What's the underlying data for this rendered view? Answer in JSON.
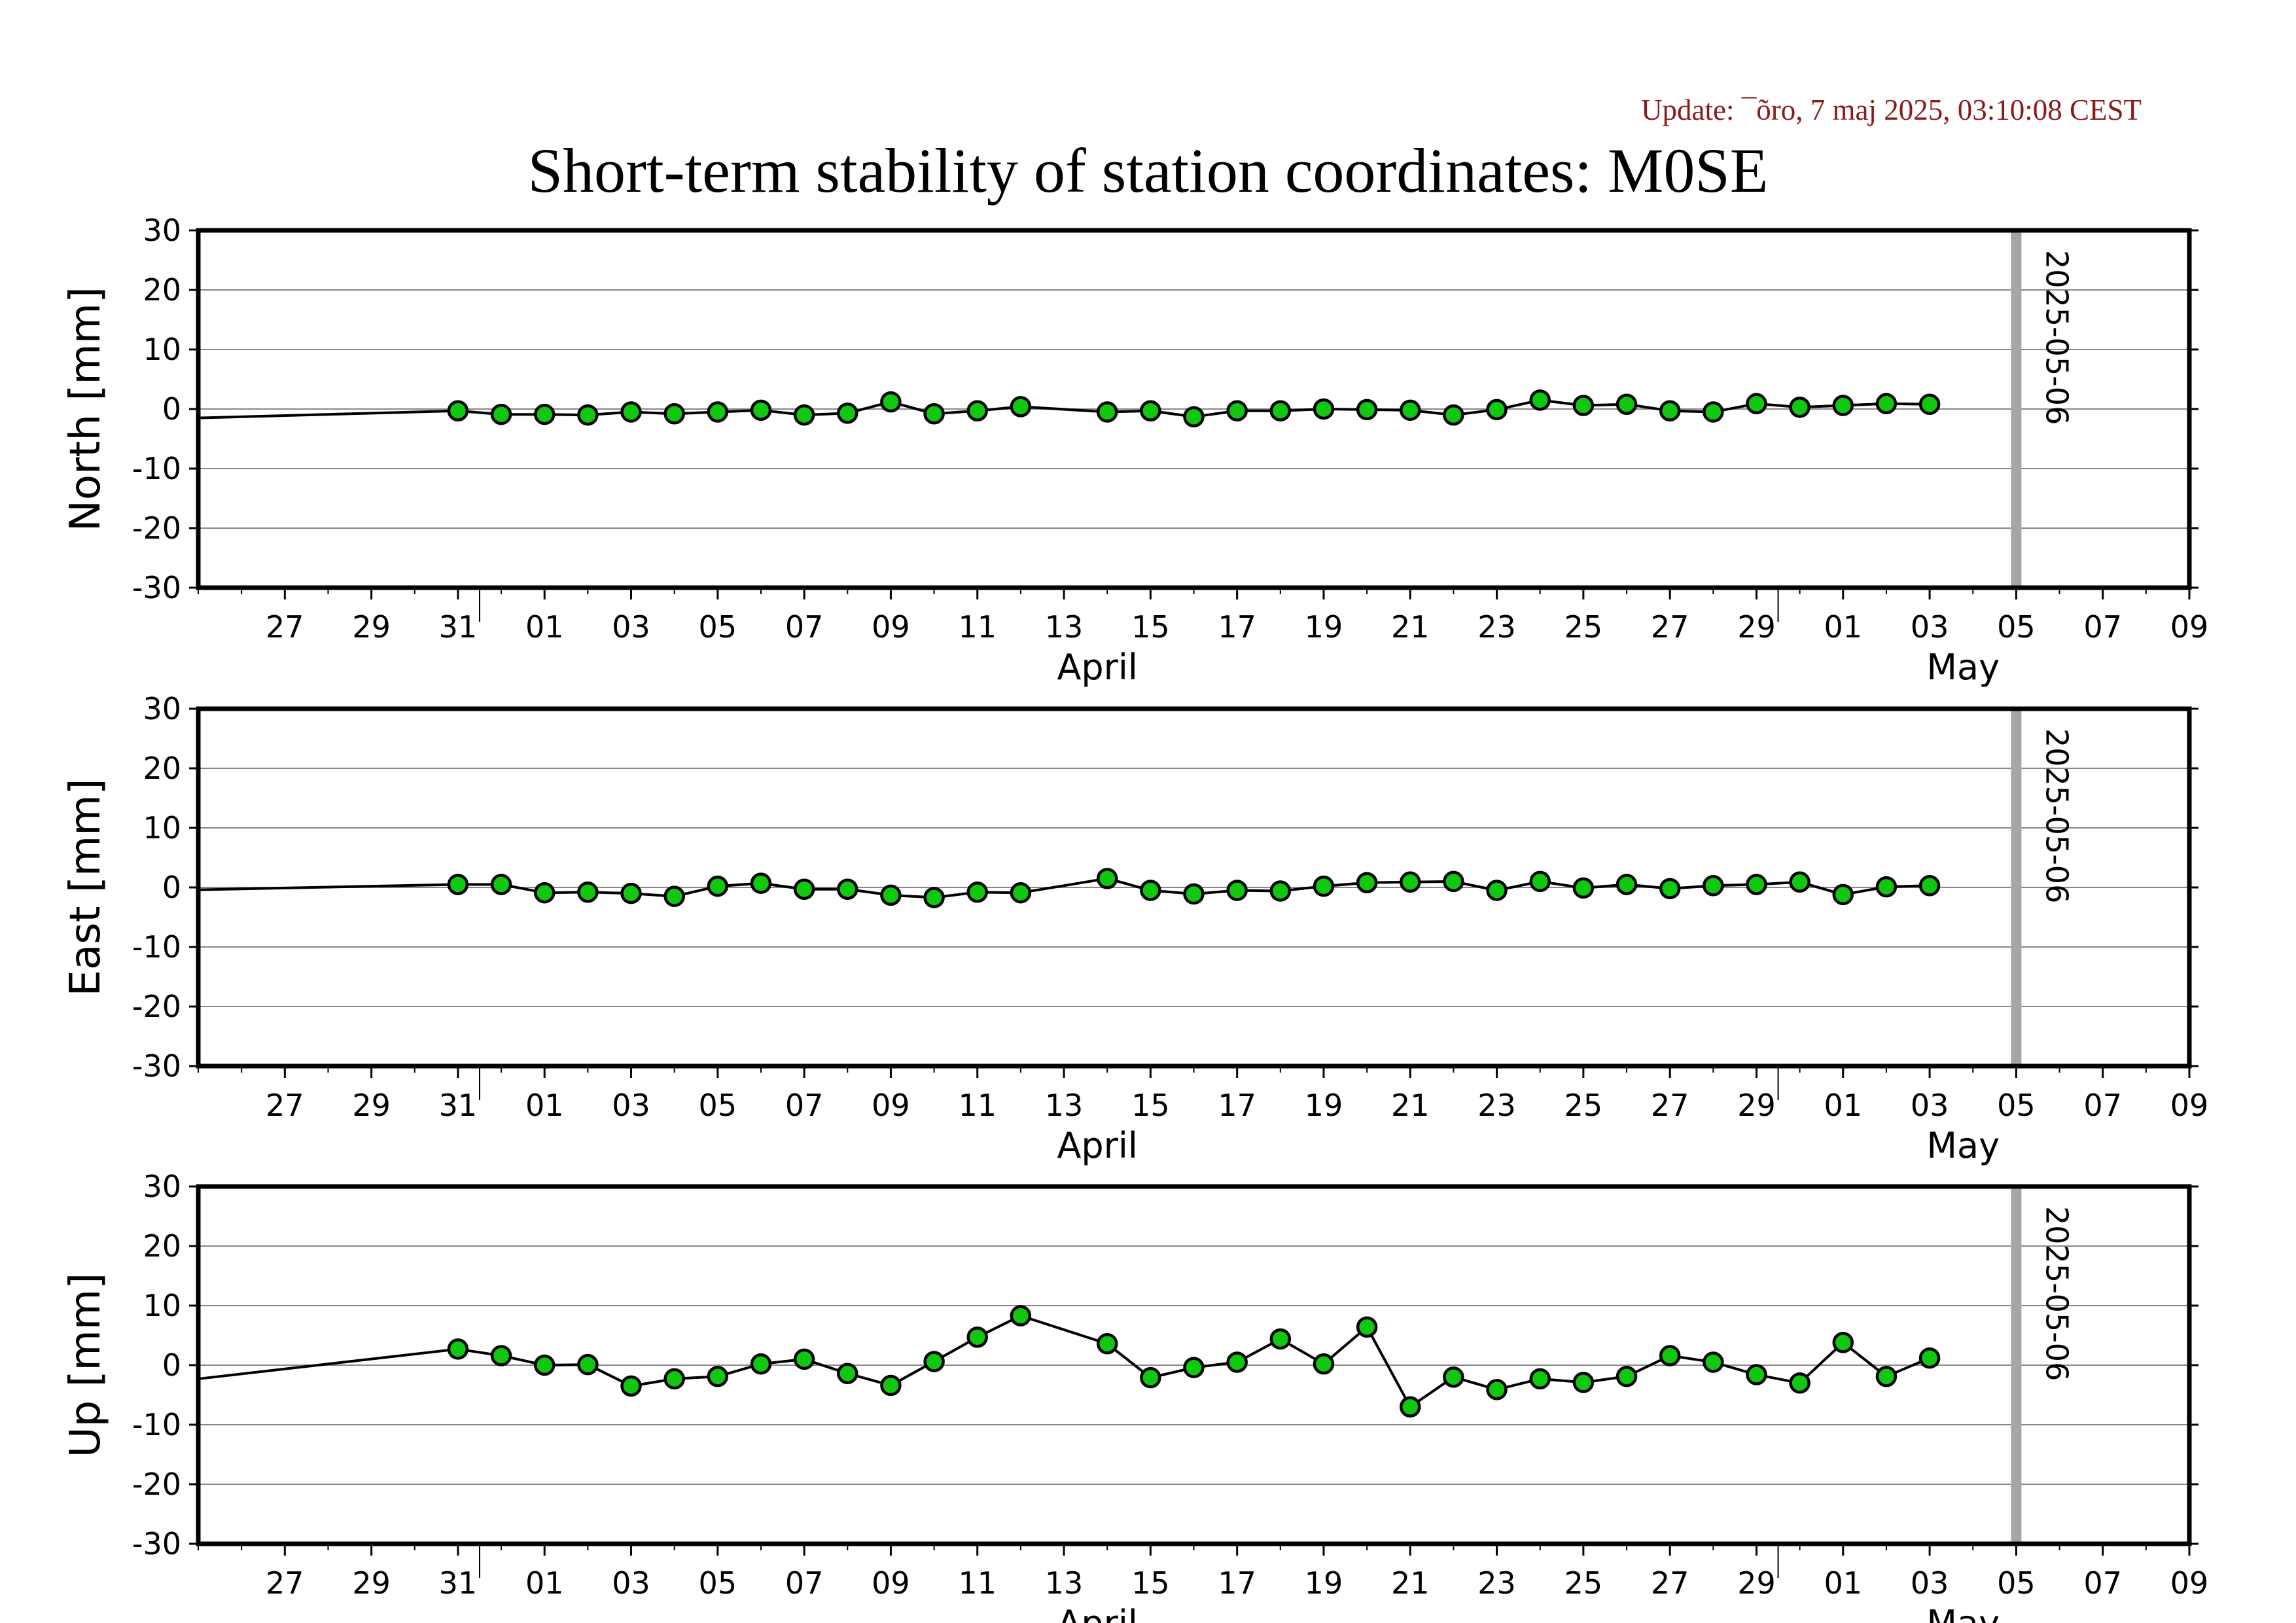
{
  "page": {
    "update_text": "Update: ¯õro, 7 maj 2025, 03:10:08 CEST",
    "title": "Short-term stability of station coordinates: M0SE"
  },
  "colors": {
    "marker_fill": "#11c811",
    "line": "#000000",
    "grid": "#888888",
    "current_date_line": "#a6a6a6",
    "update_text": "#8b1a1a"
  },
  "chart_data": [
    {
      "type": "line",
      "ylabel": "North [mm]",
      "ylim": [
        -30,
        30
      ],
      "yticks": [
        30,
        20,
        10,
        0,
        -10,
        -20,
        -30
      ],
      "grid": true,
      "xlim": [
        "2025-03-25",
        "2025-05-10"
      ],
      "month_labels": [
        "April",
        "May"
      ],
      "vline_label": "2025-05-06",
      "leading_segment": {
        "x": "2025-03-25",
        "y": -1.5
      },
      "x": [
        "2025-03-31",
        "2025-04-01",
        "2025-04-02",
        "2025-04-03",
        "2025-04-04",
        "2025-04-05",
        "2025-04-06",
        "2025-04-07",
        "2025-04-08",
        "2025-04-09",
        "2025-04-10",
        "2025-04-11",
        "2025-04-12",
        "2025-04-13",
        "2025-04-15",
        "2025-04-16",
        "2025-04-17",
        "2025-04-18",
        "2025-04-19",
        "2025-04-20",
        "2025-04-21",
        "2025-04-22",
        "2025-04-23",
        "2025-04-24",
        "2025-04-25",
        "2025-04-26",
        "2025-04-27",
        "2025-04-28",
        "2025-04-29",
        "2025-04-30",
        "2025-05-01",
        "2025-05-02",
        "2025-05-03",
        "2025-05-04"
      ],
      "values": [
        -0.3,
        -0.9,
        -0.9,
        -1.0,
        -0.5,
        -0.8,
        -0.5,
        -0.2,
        -1.0,
        -0.7,
        1.2,
        -0.8,
        -0.3,
        0.4,
        -0.5,
        -0.3,
        -1.3,
        -0.3,
        -0.3,
        0.0,
        -0.1,
        -0.2,
        -1.0,
        -0.1,
        1.5,
        0.6,
        0.8,
        -0.3,
        -0.5,
        0.9,
        0.3,
        0.6,
        0.9,
        0.8
      ]
    },
    {
      "type": "line",
      "ylabel": "East [mm]",
      "ylim": [
        -30,
        30
      ],
      "yticks": [
        30,
        20,
        10,
        0,
        -10,
        -20,
        -30
      ],
      "grid": true,
      "xlim": [
        "2025-03-25",
        "2025-05-10"
      ],
      "month_labels": [
        "April",
        "May"
      ],
      "vline_label": "2025-05-06",
      "leading_segment": {
        "x": "2025-03-25",
        "y": -0.4
      },
      "x": [
        "2025-03-31",
        "2025-04-01",
        "2025-04-02",
        "2025-04-03",
        "2025-04-04",
        "2025-04-05",
        "2025-04-06",
        "2025-04-07",
        "2025-04-08",
        "2025-04-09",
        "2025-04-10",
        "2025-04-11",
        "2025-04-12",
        "2025-04-13",
        "2025-04-15",
        "2025-04-16",
        "2025-04-17",
        "2025-04-18",
        "2025-04-19",
        "2025-04-20",
        "2025-04-21",
        "2025-04-22",
        "2025-04-23",
        "2025-04-24",
        "2025-04-25",
        "2025-04-26",
        "2025-04-27",
        "2025-04-28",
        "2025-04-29",
        "2025-04-30",
        "2025-05-01",
        "2025-05-02",
        "2025-05-03",
        "2025-05-04"
      ],
      "values": [
        0.5,
        0.5,
        -0.9,
        -0.8,
        -1.0,
        -1.5,
        0.2,
        0.7,
        -0.3,
        -0.3,
        -1.3,
        -1.7,
        -0.8,
        -0.9,
        1.5,
        -0.5,
        -1.1,
        -0.5,
        -0.6,
        0.2,
        0.8,
        0.9,
        1.0,
        -0.5,
        1.0,
        -0.1,
        0.5,
        -0.2,
        0.3,
        0.5,
        0.9,
        -1.2,
        0.1,
        0.3
      ]
    },
    {
      "type": "line",
      "ylabel": "Up [mm]",
      "ylim": [
        -30,
        30
      ],
      "yticks": [
        30,
        20,
        10,
        0,
        -10,
        -20,
        -30
      ],
      "grid": true,
      "xlim": [
        "2025-03-25",
        "2025-05-10"
      ],
      "month_labels": [
        "April",
        "May"
      ],
      "vline_label": "2025-05-06",
      "leading_segment": {
        "x": "2025-03-25",
        "y": -2.3
      },
      "x": [
        "2025-03-31",
        "2025-04-01",
        "2025-04-02",
        "2025-04-03",
        "2025-04-04",
        "2025-04-05",
        "2025-04-06",
        "2025-04-07",
        "2025-04-08",
        "2025-04-09",
        "2025-04-10",
        "2025-04-11",
        "2025-04-12",
        "2025-04-13",
        "2025-04-15",
        "2025-04-16",
        "2025-04-17",
        "2025-04-18",
        "2025-04-19",
        "2025-04-20",
        "2025-04-21",
        "2025-04-22",
        "2025-04-23",
        "2025-04-24",
        "2025-04-25",
        "2025-04-26",
        "2025-04-27",
        "2025-04-28",
        "2025-04-29",
        "2025-04-30",
        "2025-05-01",
        "2025-05-02",
        "2025-05-03",
        "2025-05-04"
      ],
      "values": [
        2.7,
        1.6,
        0.0,
        0.1,
        -3.5,
        -2.3,
        -1.9,
        0.2,
        1.0,
        -1.4,
        -3.4,
        0.6,
        4.7,
        8.3,
        3.6,
        -2.1,
        -0.4,
        0.5,
        4.4,
        0.2,
        6.4,
        -7.0,
        -2.0,
        -4.1,
        -2.3,
        -2.9,
        -1.9,
        1.6,
        0.5,
        -1.6,
        -3.0,
        3.8,
        -1.9,
        1.2
      ]
    }
  ],
  "x_tick_labels": [
    "27",
    "29",
    "31",
    "01",
    "03",
    "05",
    "07",
    "09",
    "11",
    "13",
    "15",
    "17",
    "19",
    "21",
    "23",
    "25",
    "27",
    "29",
    "01",
    "03",
    "05",
    "07",
    "09"
  ]
}
